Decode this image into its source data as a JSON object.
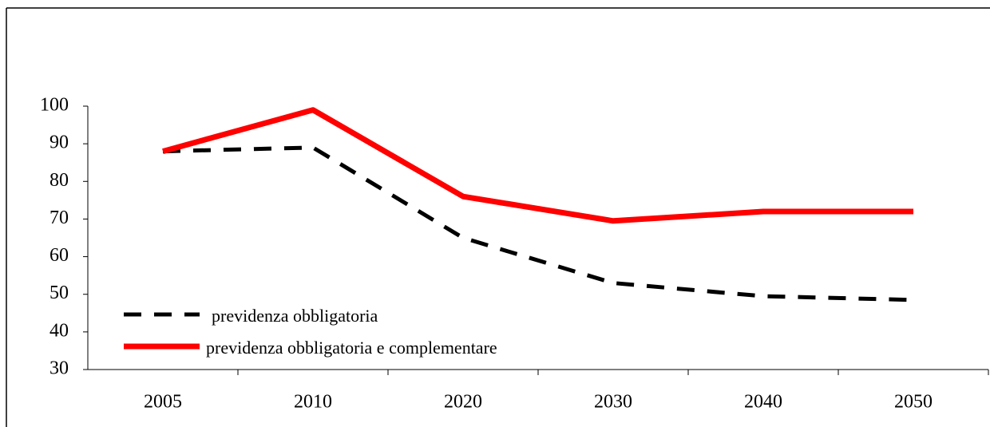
{
  "chart_data": {
    "type": "line",
    "categories": [
      "2005",
      "2010",
      "2020",
      "2030",
      "2040",
      "2050"
    ],
    "series": [
      {
        "name": "previdenza obbligatoria",
        "color": "#000000",
        "dashed": true,
        "values": [
          88,
          89,
          65,
          53,
          49.5,
          48.5
        ]
      },
      {
        "name": "previdenza obbligatoria e complementare",
        "color": "#ff0000",
        "dashed": false,
        "values": [
          88,
          99,
          76,
          69.5,
          72,
          72
        ]
      }
    ],
    "ylim": [
      30,
      100
    ],
    "yticks": [
      30,
      40,
      50,
      60,
      70,
      80,
      90,
      100
    ],
    "grid": false,
    "legend": "lower left"
  }
}
